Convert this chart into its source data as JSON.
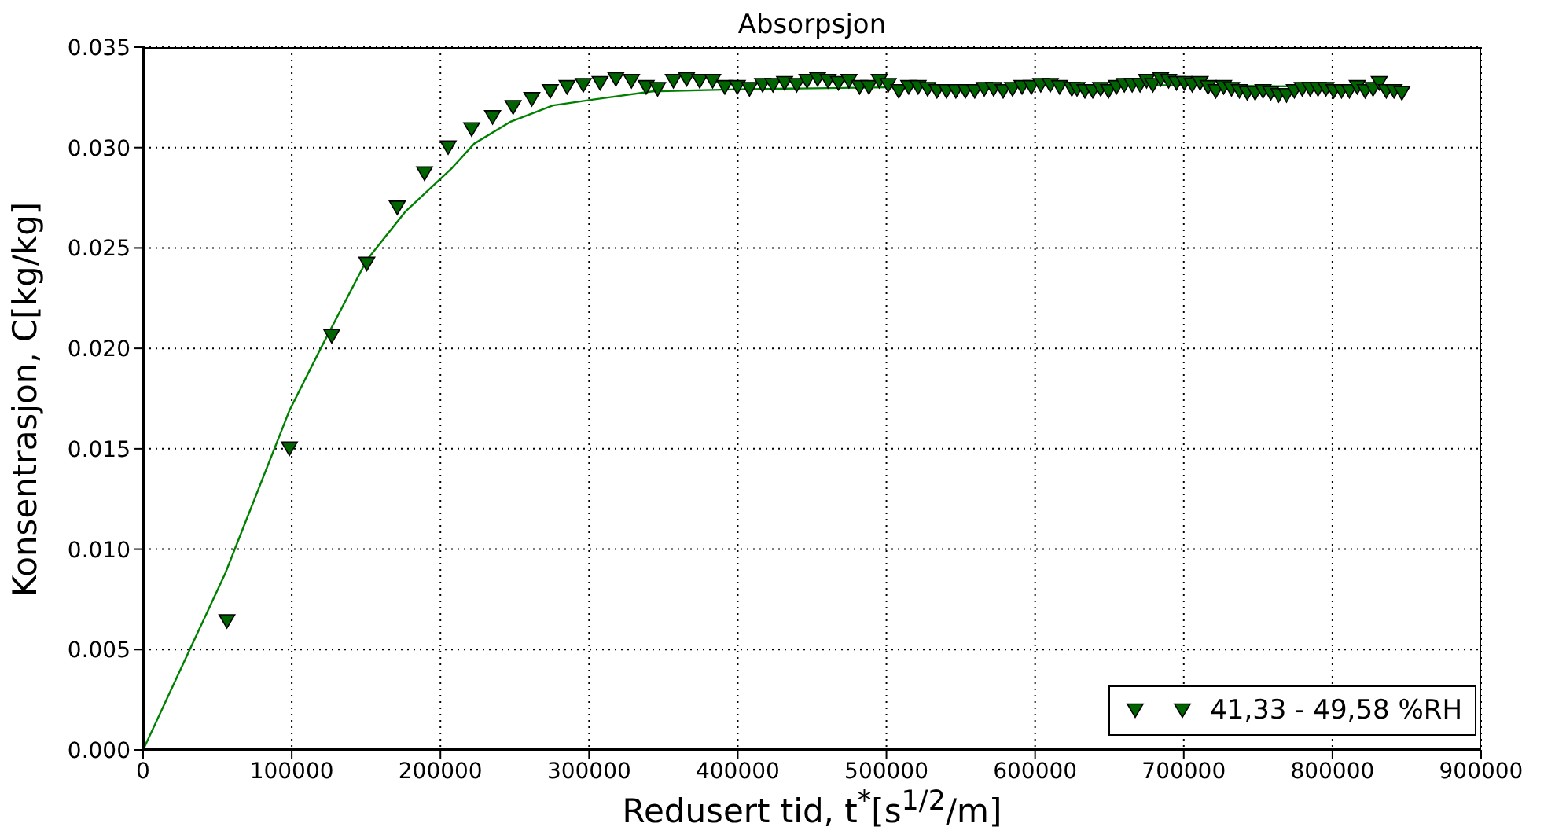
{
  "chart_data": {
    "type": "scatter",
    "title": "Absorpsjon",
    "xlabel": "Redusert tid, t$^{*}$[s$^{1/2}$/m]",
    "ylabel": "Konsentrasjon, C[kg/kg]",
    "xlim": [
      0,
      900000
    ],
    "xticks": [
      0,
      100000,
      200000,
      300000,
      400000,
      500000,
      600000,
      700000,
      800000,
      900000
    ],
    "ylim": [
      0,
      0.035
    ],
    "yticks": [
      {
        "value": 0,
        "label": "0.000"
      },
      {
        "value": 0.005,
        "label": "0.005"
      },
      {
        "value": 0.01,
        "label": "0.010"
      },
      {
        "value": 0.015,
        "label": "0.015"
      },
      {
        "value": 0.02,
        "label": "0.020"
      },
      {
        "value": 0.025,
        "label": "0.025"
      },
      {
        "value": 0.03,
        "label": "0.030"
      },
      {
        "value": 0.035,
        "label": "0.035"
      }
    ],
    "grid": true,
    "legend": "bottom right",
    "series": [
      {
        "name": "41,33 - 49,58 %RH",
        "color": "#006400",
        "marker": "triangle",
        "x": [
          56400,
          98400,
          126900,
          150500,
          171000,
          189300,
          205200,
          221000,
          235100,
          248900,
          261500,
          273900,
          285200,
          296100,
          307400,
          318000,
          328500,
          338400,
          346100,
          356700,
          365600,
          374400,
          383100,
          391300,
          399700,
          407900,
          416700,
          423700,
          431500,
          439600,
          446600,
          453700,
          460700,
          467700,
          474800,
          481900,
          488200,
          495200,
          501200,
          508300,
          515000,
          521300,
          527700,
          534000,
          540400,
          546700,
          553100,
          559400,
          565800,
          572100,
          578500,
          584800,
          591200,
          597500,
          603800,
          610200,
          616500,
          624700,
          628200,
          633500,
          638800,
          644100,
          649400,
          654700,
          660000,
          665300,
          670600,
          675000,
          679200,
          684500,
          689800,
          695100,
          700400,
          705700,
          711000,
          716300,
          721500,
          726800,
          732100,
          737400,
          742700,
          748000,
          753300,
          758500,
          763800,
          769100,
          774400,
          779700,
          785000,
          790300,
          795600,
          800900,
          806100,
          811400,
          816700,
          822000,
          827300,
          831500,
          836200,
          841400,
          846700
        ],
        "values": [
          0.0064,
          0.015,
          0.0206,
          0.0242,
          0.027,
          0.0287,
          0.03,
          0.0309,
          0.0315,
          0.032,
          0.0324,
          0.0328,
          0.033,
          0.0331,
          0.0332,
          0.0334,
          0.0333,
          0.033,
          0.0329,
          0.0333,
          0.0334,
          0.0333,
          0.0333,
          0.033,
          0.033,
          0.0329,
          0.0331,
          0.0331,
          0.0332,
          0.0331,
          0.0333,
          0.0334,
          0.0333,
          0.0332,
          0.0333,
          0.033,
          0.033,
          0.0333,
          0.0331,
          0.0328,
          0.033,
          0.033,
          0.0329,
          0.0328,
          0.0328,
          0.0328,
          0.0328,
          0.0328,
          0.0329,
          0.0329,
          0.0328,
          0.0329,
          0.033,
          0.033,
          0.0331,
          0.0331,
          0.033,
          0.0329,
          0.0329,
          0.0328,
          0.0328,
          0.0329,
          0.0328,
          0.033,
          0.0331,
          0.0331,
          0.0331,
          0.0333,
          0.0331,
          0.0334,
          0.0333,
          0.0332,
          0.0332,
          0.0331,
          0.0332,
          0.033,
          0.0328,
          0.033,
          0.0329,
          0.0328,
          0.0327,
          0.0327,
          0.0328,
          0.0327,
          0.0326,
          0.0326,
          0.0328,
          0.0329,
          0.0329,
          0.0329,
          0.0329,
          0.0328,
          0.0328,
          0.0328,
          0.033,
          0.0328,
          0.0329,
          0.0332,
          0.0328,
          0.0328,
          0.0327
        ]
      },
      {
        "type": "line",
        "color": "#008000",
        "marker": "none",
        "line_style": "solid",
        "x": [
          0,
          55300,
          98400,
          119500,
          150500,
          176300,
          208000,
          222800,
          247500,
          275700,
          303800,
          342600,
          400000,
          500000,
          600000,
          700000,
          838000
        ],
        "values": [
          0,
          0.0088,
          0.0169,
          0.02,
          0.0244,
          0.0268,
          0.029,
          0.0302,
          0.0313,
          0.0321,
          0.0324,
          0.0328,
          0.0329,
          0.033,
          0.0331,
          0.0331,
          0.033
        ]
      }
    ]
  }
}
